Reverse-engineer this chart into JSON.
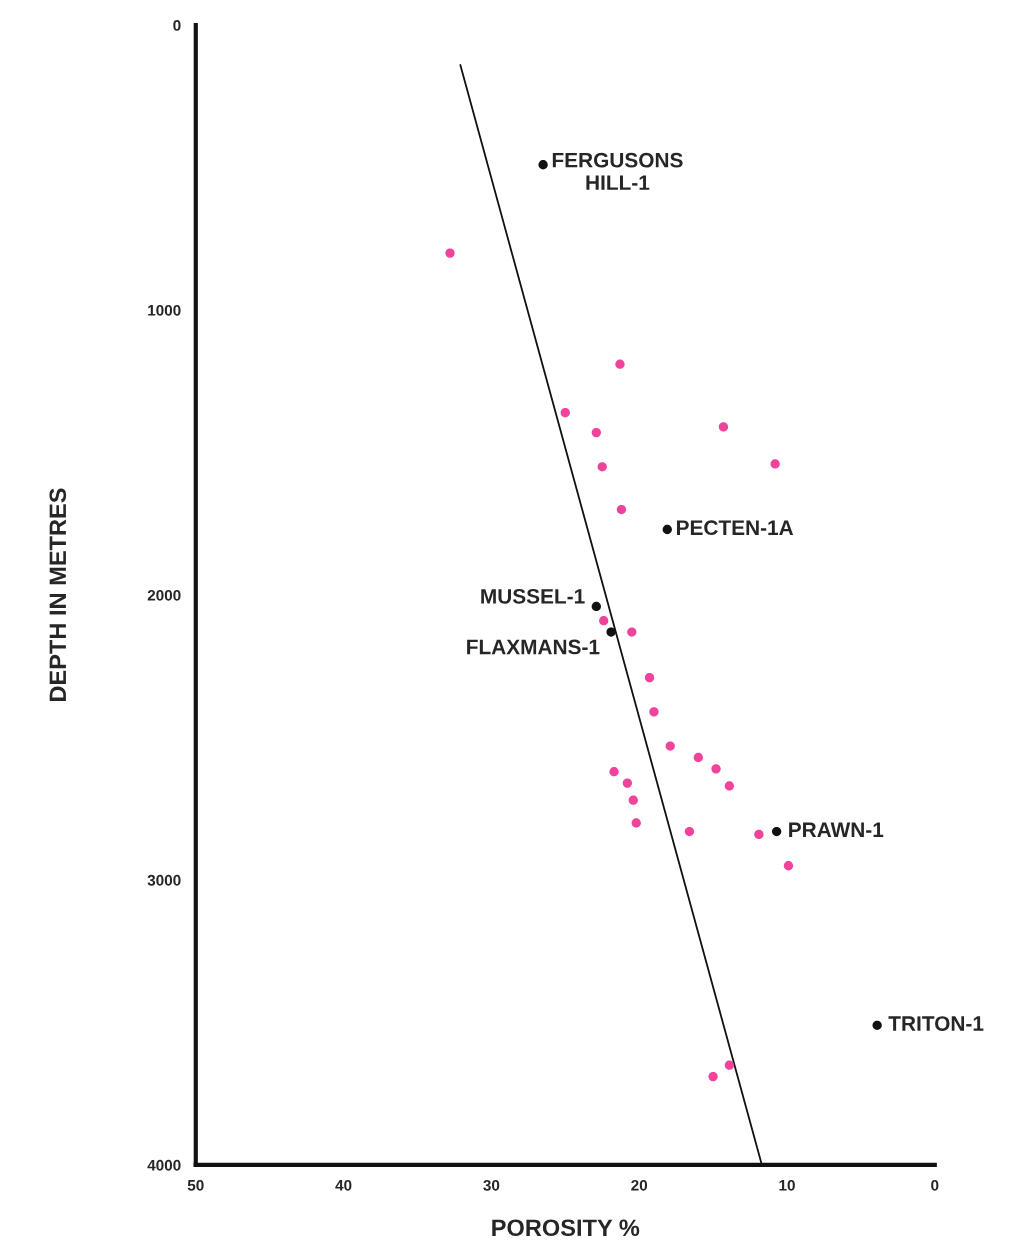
{
  "chart_data": {
    "type": "scatter",
    "xlabel": "POROSITY %",
    "ylabel": "DEPTH IN METRES",
    "xlim": [
      50,
      0
    ],
    "ylim": [
      4000,
      0
    ],
    "xticks": [
      50,
      40,
      30,
      20,
      10,
      0
    ],
    "yticks": [
      0,
      1000,
      2000,
      3000,
      4000
    ],
    "grid": false,
    "legend": false,
    "marker": "circle",
    "series": [
      {
        "color": "#f0449c",
        "x": [
          32.8,
          21.3,
          25.0,
          22.9,
          14.3,
          22.5,
          10.8,
          21.2,
          22.4,
          20.5,
          19.3,
          19.0,
          17.9,
          21.7,
          16.0,
          14.8,
          13.9,
          20.8,
          20.4,
          20.2,
          16.6,
          11.9,
          9.9,
          13.9,
          15.0
        ],
        "values": [
          800,
          1190,
          1360,
          1430,
          1410,
          1550,
          1540,
          1700,
          2090,
          2130,
          2290,
          2410,
          2530,
          2620,
          2570,
          2610,
          2670,
          2660,
          2720,
          2800,
          2830,
          2840,
          2950,
          3650,
          3690
        ]
      },
      {
        "color": "#111111",
        "x": [
          26.5,
          18.1,
          22.9,
          21.9,
          10.7,
          3.9
        ],
        "values": [
          490,
          1770,
          2040,
          2130,
          2830,
          3510
        ]
      },
      {
        "type": "line",
        "color": "#111111",
        "line_style": "solid",
        "marker": "none",
        "x": [
          32.1,
          11.7
        ],
        "values": [
          140,
          4000
        ]
      }
    ],
    "annotations": [
      {
        "text": "FERGUSONS\nHILL-1",
        "x": 26.5,
        "y": 490
      },
      {
        "text": "PECTEN-1A",
        "x": 18.1,
        "y": 1770
      },
      {
        "text": "MUSSEL-1",
        "x": 22.9,
        "y": 2040
      },
      {
        "text": "FLAXMANS-1",
        "x": 21.9,
        "y": 2130
      },
      {
        "text": "PRAWN-1",
        "x": 10.7,
        "y": 2830
      },
      {
        "text": "TRITON-1",
        "x": 3.9,
        "y": 3510
      }
    ]
  }
}
